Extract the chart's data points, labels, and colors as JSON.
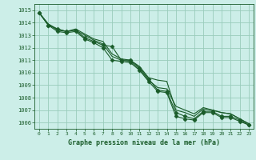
{
  "title": "Graphe pression niveau de la mer (hPa)",
  "bg_color": "#cceee8",
  "grid_color": "#99ccbb",
  "line_color": "#1a5c2a",
  "xlim": [
    -0.5,
    23.5
  ],
  "ylim": [
    1005.5,
    1015.5
  ],
  "xticks": [
    0,
    1,
    2,
    3,
    4,
    5,
    6,
    7,
    8,
    9,
    10,
    11,
    12,
    13,
    14,
    15,
    16,
    17,
    18,
    19,
    20,
    21,
    22,
    23
  ],
  "yticks": [
    1006,
    1007,
    1008,
    1009,
    1010,
    1011,
    1012,
    1013,
    1014,
    1015
  ],
  "series": [
    {
      "x": [
        0,
        1,
        2,
        3,
        4,
        5,
        6,
        7,
        8,
        9,
        10,
        11,
        12,
        13,
        14,
        15,
        16,
        17,
        18,
        19,
        20,
        21,
        22,
        23
      ],
      "y": [
        1014.8,
        1013.8,
        1013.5,
        1013.3,
        1013.4,
        1012.8,
        1012.5,
        1012.2,
        1012.1,
        1011.0,
        1011.0,
        1010.4,
        1009.5,
        1008.6,
        1008.5,
        1006.8,
        1006.5,
        1006.3,
        1006.9,
        1006.9,
        1006.5,
        1006.5,
        1006.2,
        1005.8
      ],
      "marker": "D",
      "markersize": 2.5
    },
    {
      "x": [
        0,
        1,
        2,
        3,
        4,
        5,
        6,
        7,
        8,
        9,
        10,
        11,
        12,
        13,
        14,
        15,
        16,
        17,
        18,
        19,
        20,
        21,
        22,
        23
      ],
      "y": [
        1014.8,
        1013.9,
        1013.5,
        1013.3,
        1013.5,
        1013.1,
        1012.7,
        1012.5,
        1011.5,
        1011.1,
        1011.0,
        1010.5,
        1009.6,
        1009.4,
        1009.3,
        1007.0,
        1006.8,
        1006.5,
        1007.1,
        1007.0,
        1006.8,
        1006.7,
        1006.3,
        1005.9
      ],
      "marker": null,
      "markersize": 0
    },
    {
      "x": [
        0,
        1,
        2,
        3,
        4,
        5,
        6,
        7,
        8,
        9,
        10,
        11,
        12,
        13,
        14,
        15,
        16,
        17,
        18,
        19,
        20,
        21,
        22,
        23
      ],
      "y": [
        1014.8,
        1013.9,
        1013.4,
        1013.3,
        1013.4,
        1013.0,
        1012.6,
        1012.3,
        1011.3,
        1011.0,
        1010.9,
        1010.3,
        1009.4,
        1008.8,
        1008.7,
        1007.3,
        1007.0,
        1006.7,
        1007.2,
        1007.0,
        1006.8,
        1006.7,
        1006.3,
        1005.9
      ],
      "marker": null,
      "markersize": 0
    },
    {
      "x": [
        0,
        1,
        2,
        3,
        4,
        5,
        6,
        7,
        8,
        9,
        10,
        11,
        12,
        13,
        14,
        15,
        16,
        17,
        18,
        19,
        20,
        21,
        22,
        23
      ],
      "y": [
        1014.8,
        1013.8,
        1013.3,
        1013.2,
        1013.3,
        1012.7,
        1012.4,
        1012.0,
        1011.0,
        1010.9,
        1010.8,
        1010.2,
        1009.3,
        1008.5,
        1008.4,
        1006.5,
        1006.3,
        1006.2,
        1006.8,
        1006.8,
        1006.4,
        1006.4,
        1006.1,
        1005.8
      ],
      "marker": "D",
      "markersize": 2.5
    }
  ]
}
